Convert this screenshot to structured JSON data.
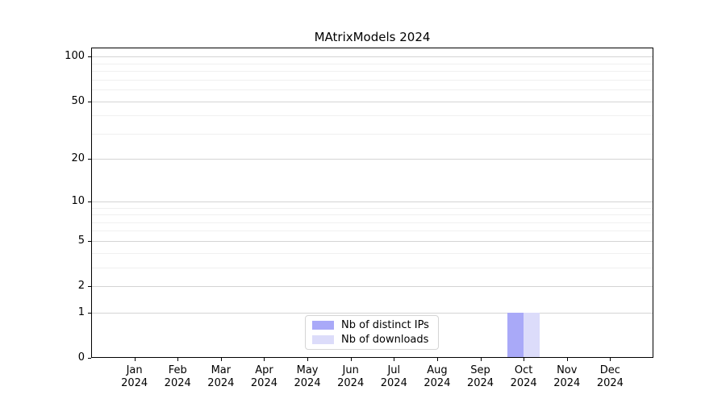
{
  "chart_data": {
    "type": "bar",
    "title": "MAtrixModels 2024",
    "categories": [
      "Jan",
      "Feb",
      "Mar",
      "Apr",
      "May",
      "Jun",
      "Jul",
      "Aug",
      "Sep",
      "Oct",
      "Nov",
      "Dec"
    ],
    "category_sublabel": "2024",
    "series": [
      {
        "name": "Nb of distinct IPs",
        "color": "#a9a9f8",
        "values": [
          0,
          0,
          0,
          0,
          0,
          0,
          0,
          0,
          0,
          1,
          0,
          0
        ]
      },
      {
        "name": "Nb of downloads",
        "color": "#dcdcfa",
        "values": [
          0,
          0,
          0,
          0,
          0,
          0,
          0,
          0,
          0,
          1,
          0,
          0
        ]
      }
    ],
    "y_axis": {
      "scale": "log1p",
      "major_ticks": [
        0,
        1,
        2,
        5,
        10,
        20,
        50,
        100
      ],
      "minor_ticks": [
        3,
        4,
        6,
        7,
        8,
        9,
        30,
        40,
        60,
        70,
        80,
        90
      ],
      "max": 115
    },
    "legend": {
      "entries": [
        "Nb of distinct IPs",
        "Nb of downloads"
      ],
      "position": "lower center"
    },
    "grid": {
      "major_color": "#d4d4d4",
      "minor_color": "#f0f0f0"
    }
  }
}
